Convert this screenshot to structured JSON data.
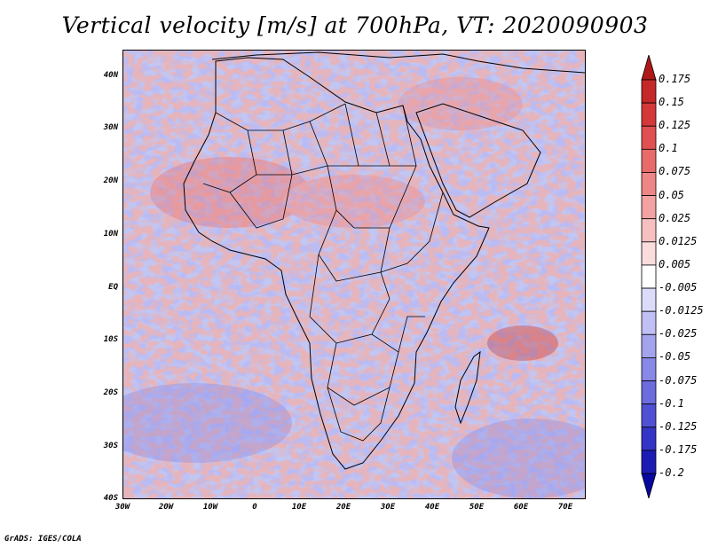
{
  "title": "Vertical velocity [m/s] at 700hPa, VT: 2020090903",
  "credit": "GrADS: IGES/COLA",
  "lat_labels": [
    "40N",
    "30N",
    "20N",
    "10N",
    "EQ",
    "10S",
    "20S",
    "30S",
    "40S"
  ],
  "lon_labels": [
    "30W",
    "20W",
    "10W",
    "0",
    "10E",
    "20E",
    "30E",
    "40E",
    "50E",
    "60E",
    "70E"
  ],
  "colorbar": {
    "labels": [
      "0.175",
      "0.15",
      "0.125",
      "0.1",
      "0.075",
      "0.05",
      "0.025",
      "0.0125",
      "0.005",
      "-0.005",
      "-0.0125",
      "-0.025",
      "-0.05",
      "-0.075",
      "-0.1",
      "-0.125",
      "-0.175",
      "-0.2"
    ],
    "colors": [
      "#b01818",
      "#c42828",
      "#d43838",
      "#e05050",
      "#e86a6a",
      "#ee8686",
      "#f2a2a2",
      "#f6c0c0",
      "#fadcdc",
      "#ffffff",
      "#dcdcfa",
      "#c0c0f4",
      "#a4a4ee",
      "#8888e6",
      "#6c6cde",
      "#5050d4",
      "#3434c6",
      "#1c1cb4",
      "#0808a0"
    ]
  }
}
